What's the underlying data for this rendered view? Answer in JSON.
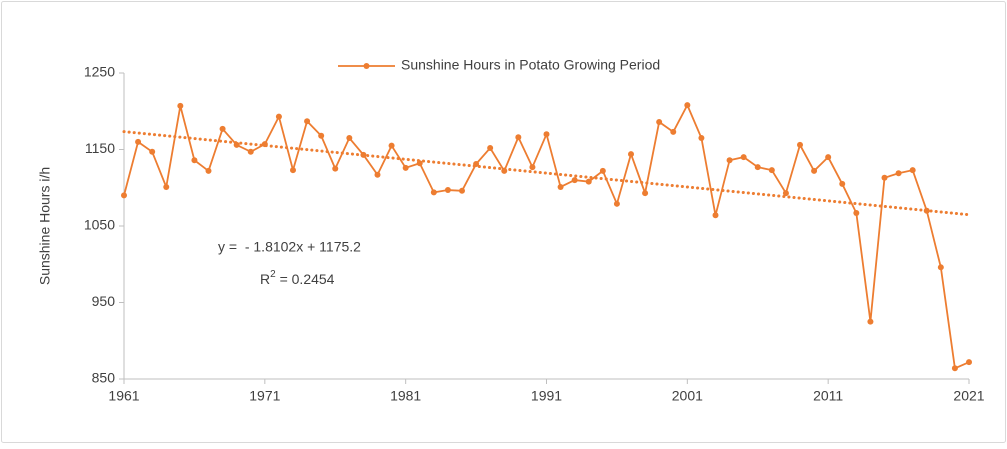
{
  "chart_data": {
    "type": "line",
    "y_label": "Sunshine Hours i/h",
    "x": [
      1961,
      1962,
      1963,
      1964,
      1965,
      1966,
      1967,
      1968,
      1969,
      1970,
      1971,
      1972,
      1973,
      1974,
      1975,
      1976,
      1977,
      1978,
      1979,
      1980,
      1981,
      1982,
      1983,
      1984,
      1985,
      1986,
      1987,
      1988,
      1989,
      1990,
      1991,
      1992,
      1993,
      1994,
      1995,
      1996,
      1997,
      1998,
      1999,
      2000,
      2001,
      2002,
      2003,
      2004,
      2005,
      2006,
      2007,
      2008,
      2009,
      2010,
      2011,
      2012,
      2013,
      2014,
      2015,
      2016,
      2017,
      2018,
      2019,
      2020,
      2021
    ],
    "series": [
      {
        "name": "Sunshine Hours in Potato Growing Period",
        "color": "#ED7D31",
        "values": [
          1090,
          1160,
          1147,
          1101,
          1207,
          1136,
          1122,
          1177,
          1156,
          1147,
          1157,
          1193,
          1123,
          1187,
          1168,
          1125,
          1165,
          1143,
          1117,
          1155,
          1126,
          1132,
          1094,
          1097,
          1096,
          1131,
          1152,
          1122,
          1166,
          1127,
          1170,
          1101,
          1110,
          1108,
          1122,
          1079,
          1144,
          1093,
          1186,
          1173,
          1208,
          1165,
          1064,
          1136,
          1140,
          1127,
          1123,
          1093,
          1156,
          1122,
          1140,
          1105,
          1067,
          925,
          1113,
          1119,
          1123,
          1070,
          996,
          864,
          872
        ]
      }
    ],
    "trendline": {
      "slope": -1.8102,
      "intercept": 1175.2,
      "equation": "y =  - 1.8102x + 1175.2",
      "r2_symbol": "R",
      "r2_exponent": "2",
      "r2_text": " = 0.2454"
    },
    "xlim": [
      1961,
      2021
    ],
    "xticks": [
      1961,
      1971,
      1981,
      1991,
      2001,
      2011,
      2021
    ],
    "ylim": [
      850,
      1250
    ],
    "yticks": [
      850,
      950,
      1050,
      1150,
      1250
    ],
    "grid": false,
    "legend": "top"
  }
}
